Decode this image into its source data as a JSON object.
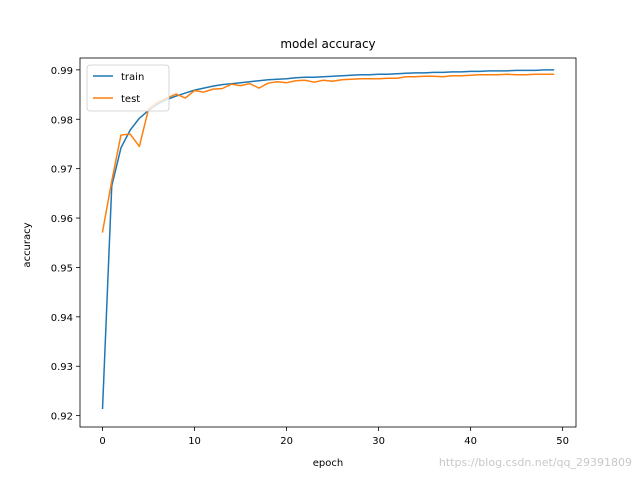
{
  "chart_data": {
    "type": "line",
    "title": "model accuracy",
    "xlabel": "epoch",
    "ylabel": "accuracy",
    "xlim": [
      -2.45,
      51.45
    ],
    "ylim": [
      0.9177,
      0.9924
    ],
    "xticks": [
      0,
      10,
      20,
      30,
      40,
      50
    ],
    "yticks": [
      0.92,
      0.93,
      0.94,
      0.95,
      0.96,
      0.97,
      0.98,
      0.99
    ],
    "ytick_labels": [
      "0.92",
      "0.93",
      "0.94",
      "0.95",
      "0.96",
      "0.97",
      "0.98",
      "0.99"
    ],
    "grid": false,
    "legend_position": "top-left",
    "x": [
      0,
      1,
      2,
      3,
      4,
      5,
      6,
      7,
      8,
      9,
      10,
      11,
      12,
      13,
      14,
      15,
      16,
      17,
      18,
      19,
      20,
      21,
      22,
      23,
      24,
      25,
      26,
      27,
      28,
      29,
      30,
      31,
      32,
      33,
      34,
      35,
      36,
      37,
      38,
      39,
      40,
      41,
      42,
      43,
      44,
      45,
      46,
      47,
      48,
      49
    ],
    "series": [
      {
        "name": "train",
        "color": "#1f77b4",
        "values": [
          0.9215,
          0.9665,
          0.9742,
          0.9778,
          0.9802,
          0.9818,
          0.9831,
          0.984,
          0.9847,
          0.9853,
          0.9859,
          0.9863,
          0.9867,
          0.987,
          0.9872,
          0.9874,
          0.9876,
          0.9878,
          0.988,
          0.9881,
          0.9882,
          0.9884,
          0.9885,
          0.9885,
          0.9886,
          0.9887,
          0.9888,
          0.9889,
          0.989,
          0.989,
          0.9891,
          0.9891,
          0.9892,
          0.9893,
          0.9894,
          0.9894,
          0.9895,
          0.9895,
          0.9896,
          0.9896,
          0.9897,
          0.9897,
          0.9898,
          0.9898,
          0.9898,
          0.9899,
          0.9899,
          0.9899,
          0.99,
          0.99
        ]
      },
      {
        "name": "test",
        "color": "#ff7f0e",
        "values": [
          0.9572,
          0.9675,
          0.9768,
          0.977,
          0.9745,
          0.9821,
          0.9835,
          0.9843,
          0.9851,
          0.9843,
          0.9858,
          0.9855,
          0.9861,
          0.9862,
          0.9871,
          0.9868,
          0.9872,
          0.9863,
          0.9873,
          0.9876,
          0.9874,
          0.9878,
          0.9879,
          0.9875,
          0.9879,
          0.9877,
          0.988,
          0.9881,
          0.9882,
          0.9882,
          0.9882,
          0.9883,
          0.9883,
          0.9886,
          0.9886,
          0.9887,
          0.9887,
          0.9886,
          0.9888,
          0.9888,
          0.9889,
          0.989,
          0.989,
          0.989,
          0.9891,
          0.989,
          0.989,
          0.9891,
          0.9891,
          0.9891
        ]
      }
    ]
  },
  "watermark": "https://blog.csdn.net/qq_29391809"
}
